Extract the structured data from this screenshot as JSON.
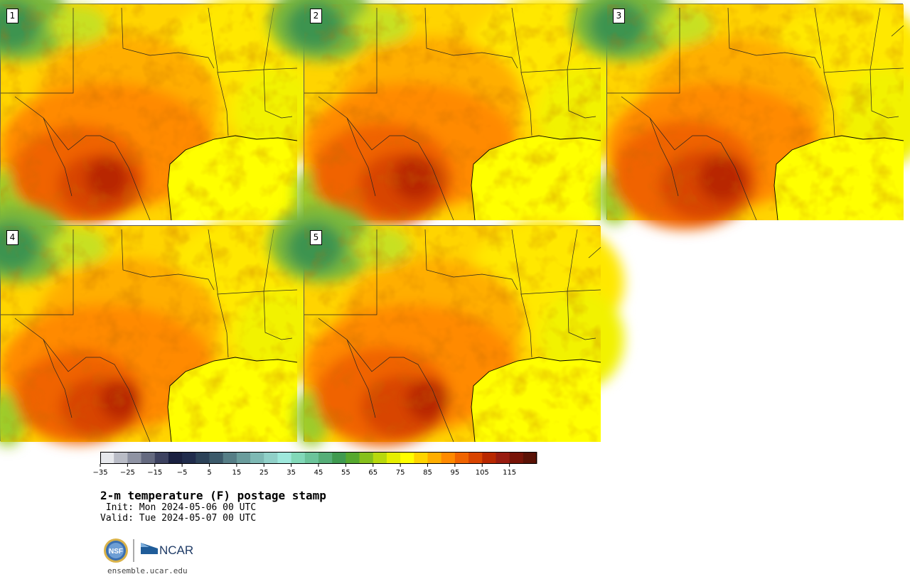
{
  "panels": [
    {
      "label": "1",
      "hot": 1.0
    },
    {
      "label": "2",
      "hot": 1.05
    },
    {
      "label": "3",
      "hot": 1.1
    },
    {
      "label": "4",
      "hot": 0.95
    },
    {
      "label": "5",
      "hot": 1.0
    }
  ],
  "colorbar": {
    "colors": [
      "#e6e8ec",
      "#b9bcc6",
      "#8f93a3",
      "#656a80",
      "#3d4260",
      "#1a2040",
      "#202c4c",
      "#2c4258",
      "#3c5a6a",
      "#567e86",
      "#6a9c9c",
      "#7eb9b4",
      "#90d0c8",
      "#9ee8dc",
      "#82d8b8",
      "#6cc49a",
      "#56ae78",
      "#3f9a50",
      "#55a82e",
      "#86c01c",
      "#b8d80c",
      "#e6ee00",
      "#ffff00",
      "#ffd400",
      "#ffae00",
      "#ff8a00",
      "#f06400",
      "#d84400",
      "#b82800",
      "#981c10",
      "#781408",
      "#5a1206"
    ],
    "tick_labels": [
      "−35",
      "−25",
      "−15",
      "−5",
      "5",
      "15",
      "25",
      "35",
      "45",
      "55",
      "65",
      "75",
      "85",
      "95",
      "105",
      "115"
    ]
  },
  "title": "2-m temperature (F) postage stamp",
  "init": " Init: Mon 2024-05-06 00 UTC",
  "valid": "Valid: Tue 2024-05-07 00 UTC",
  "logo": {
    "nsf_text": "NSF",
    "ncar_text": "NCAR"
  },
  "footer": "ensemble.ucar.edu"
}
